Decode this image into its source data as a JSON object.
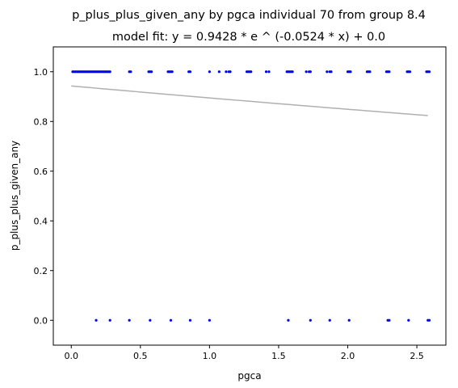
{
  "chart_data": {
    "type": "scatter",
    "title": "p_plus_plus_given_any by pgca individual 70 from group 8.4",
    "subtitle": "model fit: y = 0.9428 * e ^ (-0.0524 * x) + 0.0",
    "xlabel": "pgca",
    "ylabel": "p_plus_plus_given_any",
    "xlim": [
      -0.13,
      2.71
    ],
    "ylim": [
      -0.1,
      1.1
    ],
    "xticks": [
      "0.0",
      "0.5",
      "1.0",
      "1.5",
      "2.0",
      "2.5"
    ],
    "yticks": [
      "0.0",
      "0.2",
      "0.4",
      "0.6",
      "0.8",
      "1.0"
    ],
    "grid": false,
    "points_color": "#0000ff",
    "fit_color": "#b0b0b0",
    "series": [
      {
        "x": [
          0.01,
          0.02,
          0.03,
          0.04,
          0.05,
          0.06,
          0.07,
          0.08,
          0.09,
          0.1,
          0.11,
          0.12,
          0.13,
          0.14,
          0.15,
          0.16,
          0.17,
          0.18,
          0.19,
          0.2,
          0.21,
          0.22,
          0.23,
          0.24,
          0.25,
          0.26,
          0.27,
          0.28,
          0.42,
          0.43,
          0.56,
          0.57,
          0.58,
          0.7,
          0.71,
          0.72,
          0.73,
          0.85,
          0.86,
          1.0,
          1.07,
          1.12,
          1.14,
          1.15,
          1.27,
          1.28,
          1.29,
          1.3,
          1.41,
          1.43,
          1.56,
          1.57,
          1.58,
          1.59,
          1.6,
          1.7,
          1.72,
          1.73,
          1.85,
          1.87,
          1.88,
          2.0,
          2.01,
          2.02,
          2.14,
          2.15,
          2.16,
          2.28,
          2.29,
          2.3,
          2.43,
          2.44,
          2.45,
          2.57,
          2.58,
          2.59,
          0.18,
          0.28,
          0.42,
          0.57,
          0.72,
          0.86,
          1.0,
          1.57,
          1.73,
          1.87,
          2.01,
          2.29,
          2.3,
          2.44,
          2.58,
          2.59
        ],
        "y": [
          1,
          1,
          1,
          1,
          1,
          1,
          1,
          1,
          1,
          1,
          1,
          1,
          1,
          1,
          1,
          1,
          1,
          1,
          1,
          1,
          1,
          1,
          1,
          1,
          1,
          1,
          1,
          1,
          1,
          1,
          1,
          1,
          1,
          1,
          1,
          1,
          1,
          1,
          1,
          1,
          1,
          1,
          1,
          1,
          1,
          1,
          1,
          1,
          1,
          1,
          1,
          1,
          1,
          1,
          1,
          1,
          1,
          1,
          1,
          1,
          1,
          1,
          1,
          1,
          1,
          1,
          1,
          1,
          1,
          1,
          1,
          1,
          1,
          1,
          1,
          1,
          0,
          0,
          0,
          0,
          0,
          0,
          0,
          0,
          0,
          0,
          0,
          0,
          0,
          0,
          0,
          0
        ]
      }
    ],
    "fit": {
      "a": 0.9428,
      "b": -0.0524,
      "c": 0.0,
      "x_start": 0.0,
      "x_end": 2.58
    }
  }
}
